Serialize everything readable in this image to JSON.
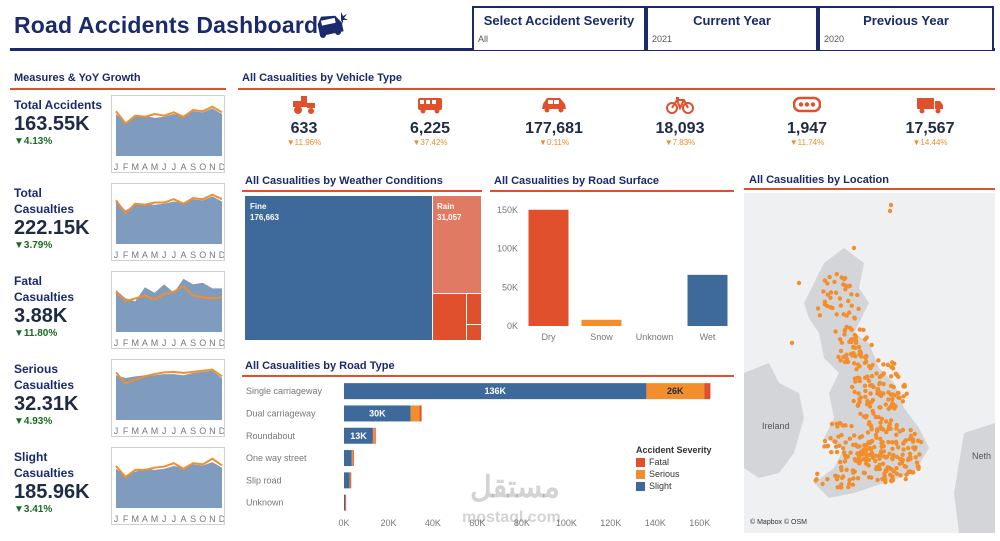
{
  "title": "Road Accidents Dashboard",
  "filters": [
    {
      "label": "Select Accident Severity",
      "value": "All"
    },
    {
      "label": "Current Year",
      "value": "2021"
    },
    {
      "label": "Previous Year",
      "value": "2020"
    }
  ],
  "sections": {
    "measures": "Measures & YoY Growth",
    "vehicle": "All Casualities by Vehicle Type",
    "weather": "All Casualities by Weather Conditions",
    "surface": "All Casualities by Road Surface",
    "location": "All Casualities by Location",
    "roadtype": "All Casualities by Road Type"
  },
  "months": [
    "J",
    "F",
    "M",
    "A",
    "M",
    "J",
    "J",
    "A",
    "S",
    "O",
    "N",
    "D"
  ],
  "kpis": [
    {
      "name": "Total Accidents",
      "value": "163.55K",
      "delta": "▼4.13%"
    },
    {
      "name": "Total Casualties",
      "value": "222.15K",
      "delta": "▼3.79%"
    },
    {
      "name": "Fatal Casualties",
      "value": "3.88K",
      "delta": "▼11.80%"
    },
    {
      "name": "Serious Casualties",
      "value": "32.31K",
      "delta": "▼4.93%"
    },
    {
      "name": "Slight Casualties",
      "value": "185.96K",
      "delta": "▼3.41%"
    }
  ],
  "vehicles": [
    {
      "icon": "tractor-icon",
      "value": "633",
      "delta": "▼11.96%"
    },
    {
      "icon": "bus-icon",
      "value": "6,225",
      "delta": "▼37.42%"
    },
    {
      "icon": "car-icon",
      "value": "177,681",
      "delta": "▼0.11%"
    },
    {
      "icon": "bicycle-icon",
      "value": "18,093",
      "delta": "▼7.83%"
    },
    {
      "icon": "other-vehicle-icon",
      "value": "1,947",
      "delta": "▼11.74%"
    },
    {
      "icon": "truck-icon",
      "value": "17,567",
      "delta": "▼14.44%"
    }
  ],
  "weather": {
    "fine_label": "Fine",
    "fine_value": "176,663",
    "rain_label": "Rain",
    "rain_value": "31,057"
  },
  "map": {
    "label_ireland": "Ireland",
    "label_neth": "Neth",
    "credit": "© Mapbox © OSM"
  },
  "legend": {
    "title": "Accident Severity",
    "items": [
      "Fatal",
      "Serious",
      "Slight"
    ]
  },
  "watermark": {
    "arabic": "مستقل",
    "latin": "mostaql.com"
  },
  "colors": {
    "blue": "#3d6a9a",
    "orange": "#f28e2b",
    "red": "#e1502c",
    "navy": "#1a2a6c"
  },
  "chart_data": [
    {
      "type": "bar",
      "title": "All Casualities by Road Surface",
      "categories": [
        "Dry",
        "Snow",
        "Unknown",
        "Wet"
      ],
      "values": [
        150000,
        8000,
        0,
        66000
      ],
      "ylim": [
        0,
        160000
      ],
      "yticks": [
        "0K",
        "50K",
        "100K",
        "150K"
      ]
    },
    {
      "type": "bar",
      "orientation": "horizontal",
      "title": "All Casualities by Road Type",
      "categories": [
        "Single carriageway",
        "Dual carriageway",
        "Roundabout",
        "One way street",
        "Slip road",
        "Unknown"
      ],
      "series": [
        {
          "name": "Slight",
          "values": [
            136000,
            30000,
            13000,
            3500,
            2500,
            500
          ]
        },
        {
          "name": "Serious",
          "values": [
            26000,
            4000,
            900,
            600,
            400,
            100
          ]
        },
        {
          "name": "Fatal",
          "values": [
            2800,
            900,
            100,
            50,
            80,
            20
          ]
        }
      ],
      "bar_labels": [
        "136K",
        "26K",
        "30K",
        "13K"
      ],
      "xlim": [
        0,
        170000
      ],
      "xticks": [
        "0K",
        "20K",
        "40K",
        "60K",
        "80K",
        "100K",
        "120K",
        "140K",
        "160K"
      ]
    }
  ]
}
